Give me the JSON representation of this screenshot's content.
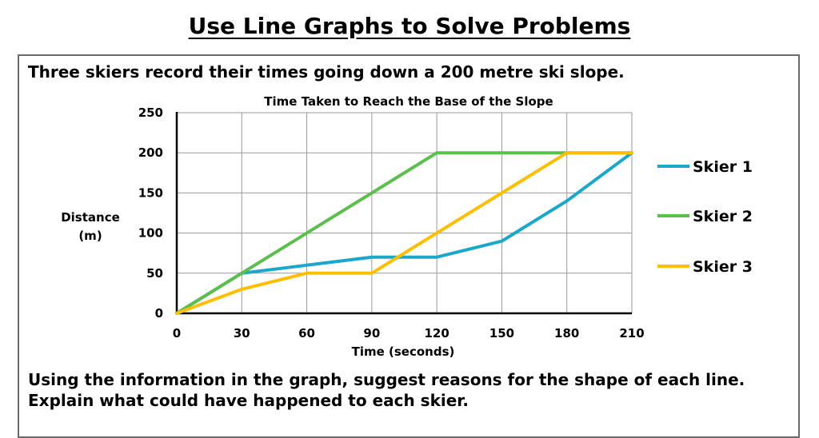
{
  "page": {
    "heading": "Use Line Graphs to Solve Problems",
    "intro": "Three skiers record their times going down a 200 metre ski slope.",
    "question": "Using the information in the graph, suggest reasons for the shape of each line. Explain what could have happened to each skier."
  },
  "chart_data": {
    "type": "line",
    "title": "Time Taken to Reach the Base of the Slope",
    "xlabel": "Time (seconds)",
    "ylabel_lines": [
      "Distance",
      "(m)"
    ],
    "x": [
      0,
      30,
      60,
      90,
      120,
      150,
      180,
      210
    ],
    "xlim": [
      0,
      210
    ],
    "ylim": [
      0,
      250
    ],
    "x_ticks": [
      "0",
      "30",
      "60",
      "90",
      "120",
      "150",
      "180",
      "210"
    ],
    "y_ticks": [
      "0",
      "50",
      "100",
      "150",
      "200",
      "250"
    ],
    "grid": true,
    "legend": "right",
    "series": [
      {
        "name": "Skier 1",
        "color": "#1aa7c9",
        "values": [
          0,
          50,
          60,
          70,
          70,
          90,
          140,
          200
        ]
      },
      {
        "name": "Skier 2",
        "color": "#5cbf4d",
        "values": [
          0,
          50,
          100,
          150,
          200,
          200,
          200,
          200
        ]
      },
      {
        "name": "Skier 3",
        "color": "#ffbf00",
        "values": [
          0,
          30,
          50,
          50,
          100,
          150,
          200,
          200
        ]
      }
    ]
  }
}
